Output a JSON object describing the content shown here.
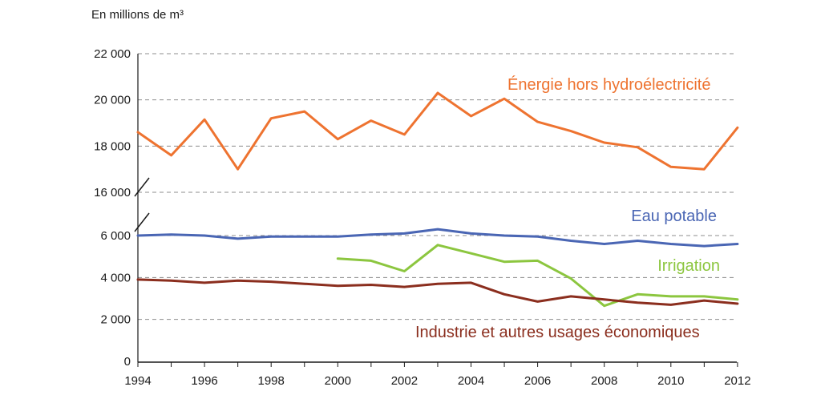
{
  "chart_data": {
    "type": "line",
    "y_unit_label": "En millions de m³",
    "x": [
      1994,
      1995,
      1996,
      1997,
      1998,
      1999,
      2000,
      2001,
      2002,
      2003,
      2004,
      2005,
      2006,
      2007,
      2008,
      2009,
      2010,
      2011,
      2012
    ],
    "x_ticks": [
      "1994",
      "1996",
      "1998",
      "2000",
      "2002",
      "2004",
      "2006",
      "2008",
      "2010",
      "2012"
    ],
    "y_ticks_upper": [
      "22 000",
      "20 000",
      "18 000",
      "16 000"
    ],
    "y_ticks_lower": [
      "6 000",
      "4 000",
      "2 000",
      "0"
    ],
    "y_axis_break": "between 6 000 and 16 000",
    "grid": "horizontal dashed",
    "series": [
      {
        "name": "Énergie hors hydroélectricité",
        "color": "#ee7330",
        "values": [
          18600,
          17600,
          19150,
          17000,
          19200,
          19500,
          18300,
          19100,
          18500,
          20300,
          19300,
          20050,
          19050,
          18650,
          18150,
          17950,
          17100,
          17000,
          18800
        ]
      },
      {
        "name": "Eau potable",
        "color": "#4a66b4",
        "values": [
          6000,
          6050,
          6000,
          5850,
          5950,
          5950,
          5950,
          6050,
          6100,
          6300,
          6100,
          6000,
          5950,
          5750,
          5600,
          5750,
          5600,
          5500,
          5600
        ]
      },
      {
        "name": "Irrigation",
        "color": "#8cc63f",
        "values": [
          null,
          null,
          null,
          null,
          null,
          null,
          4900,
          4800,
          4300,
          5550,
          5150,
          4750,
          4800,
          3950,
          2650,
          3200,
          3100,
          3100,
          2950
        ]
      },
      {
        "name": "Industrie et autres usages économiques",
        "color": "#8b2e1e",
        "values": [
          3900,
          3850,
          3750,
          3850,
          3800,
          3700,
          3600,
          3650,
          3550,
          3700,
          3750,
          3200,
          2850,
          3100,
          2950,
          2800,
          2700,
          2900,
          2750
        ]
      }
    ]
  }
}
